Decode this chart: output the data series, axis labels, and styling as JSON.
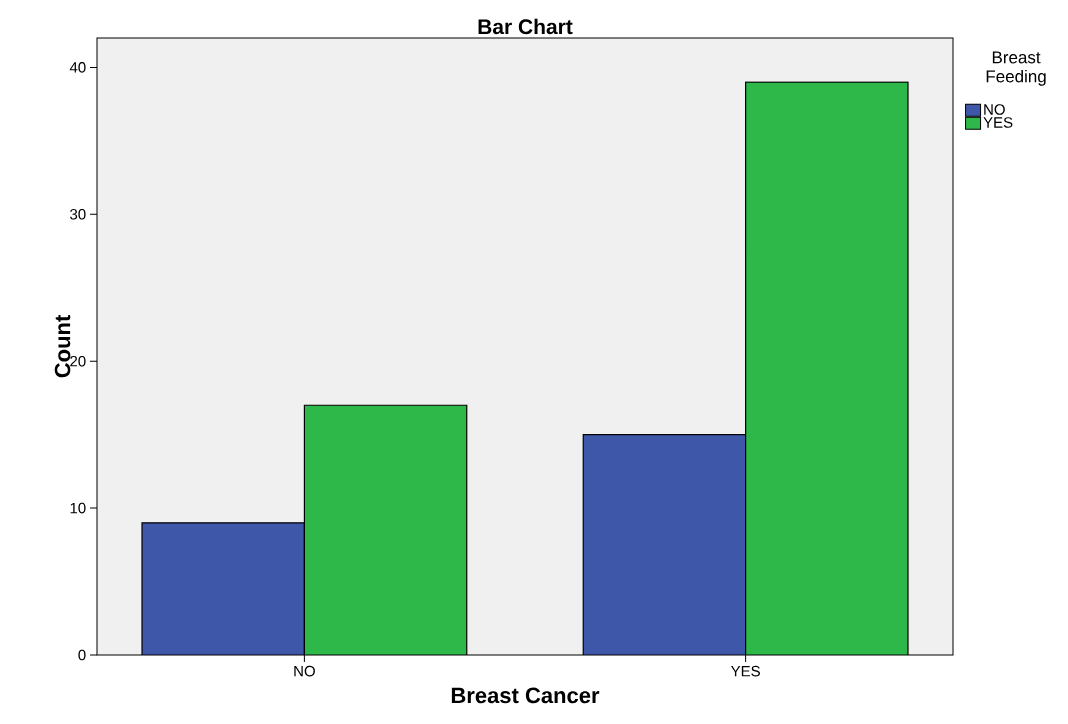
{
  "chart_data": {
    "type": "bar",
    "title": "Bar Chart",
    "xlabel": "Breast Cancer",
    "ylabel": "Count",
    "legend_title": "Breast Feeding",
    "categories": [
      "NO",
      "YES"
    ],
    "series": [
      {
        "name": "NO",
        "color": "#3f57a8",
        "values": [
          9,
          15
        ]
      },
      {
        "name": "YES",
        "color": "#2eb84a",
        "values": [
          17,
          39
        ]
      }
    ],
    "ylim": [
      0,
      42
    ],
    "yticks": [
      0,
      10,
      20,
      30,
      40
    ],
    "grid": false,
    "legend": "top right"
  }
}
